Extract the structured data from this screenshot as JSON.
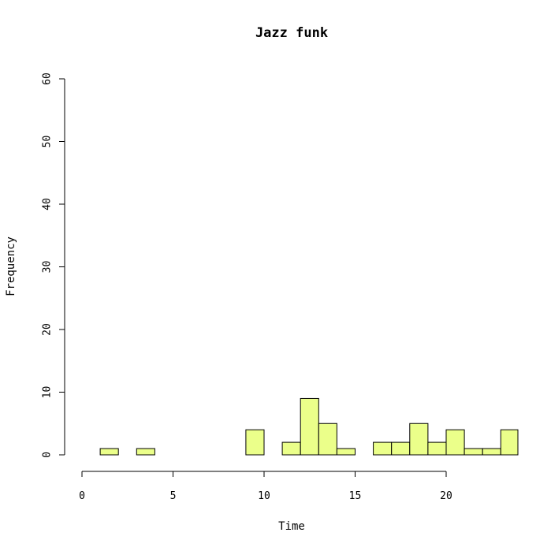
{
  "chart_data": {
    "type": "bar",
    "title": "Jazz funk",
    "xlabel": "Time",
    "ylabel": "Frequency",
    "xlim": [
      0,
      24
    ],
    "ylim": [
      0,
      60
    ],
    "x_ticks": [
      0,
      5,
      10,
      15,
      20
    ],
    "y_ticks": [
      0,
      10,
      20,
      30,
      40,
      50,
      60
    ],
    "bin_width": 1,
    "bin_starts": [
      0,
      1,
      2,
      3,
      4,
      5,
      6,
      7,
      8,
      9,
      10,
      11,
      12,
      13,
      14,
      15,
      16,
      17,
      18,
      19,
      20,
      21,
      22,
      23
    ],
    "values": [
      0,
      1,
      0,
      1,
      0,
      0,
      0,
      0,
      0,
      4,
      0,
      2,
      9,
      5,
      1,
      0,
      2,
      2,
      5,
      2,
      4,
      1,
      1,
      4
    ],
    "bar_color": "#EBFF8A",
    "grid": false,
    "legend": "none"
  }
}
